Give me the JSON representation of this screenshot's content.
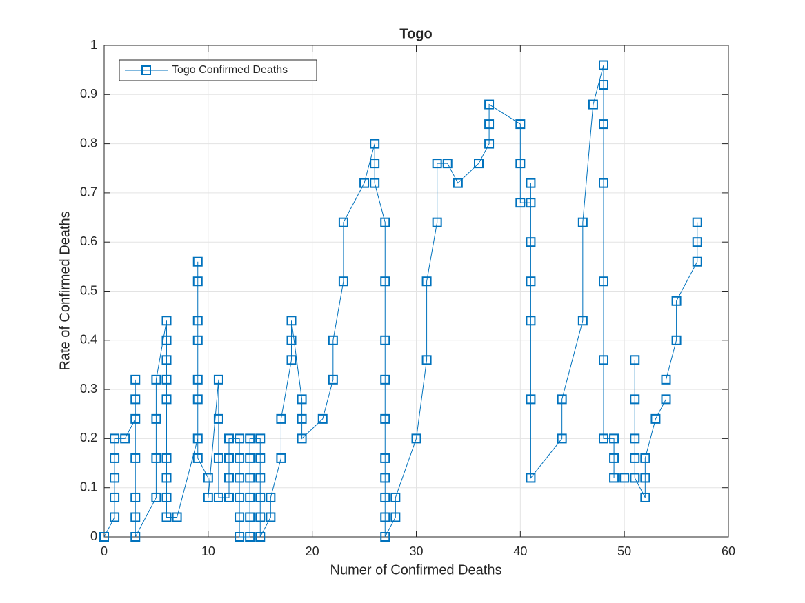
{
  "chart_data": {
    "type": "line",
    "title": "Togo",
    "x_label": "Numer of Confirmed Deaths",
    "y_label": "Rate of Confirmed Deaths",
    "series": [
      {
        "name": "Togo Confirmed Deaths",
        "color": "#0072bd",
        "x": [
          0,
          1,
          1,
          1,
          1,
          1,
          2,
          3,
          3,
          3,
          3,
          3,
          3,
          3,
          5,
          5,
          5,
          5,
          6,
          6,
          6,
          6,
          6,
          6,
          6,
          6,
          6,
          7,
          9,
          9,
          9,
          9,
          9,
          9,
          9,
          9,
          10,
          10,
          11,
          11,
          11,
          11,
          12,
          12,
          12,
          12,
          13,
          13,
          13,
          13,
          13,
          13,
          14,
          14,
          14,
          14,
          14,
          14,
          15,
          15,
          15,
          15,
          15,
          15,
          16,
          16,
          17,
          17,
          18,
          18,
          18,
          19,
          19,
          19,
          21,
          22,
          22,
          23,
          23,
          25,
          26,
          26,
          26,
          27,
          27,
          27,
          27,
          27,
          27,
          27,
          27,
          27,
          27,
          28,
          28,
          30,
          31,
          31,
          32,
          32,
          33,
          34,
          36,
          37,
          37,
          37,
          40,
          40,
          40,
          41,
          41,
          41,
          41,
          41,
          41,
          41,
          44,
          44,
          46,
          46,
          47,
          48,
          48,
          48,
          48,
          48,
          48,
          48,
          49,
          49,
          49,
          50,
          51,
          51,
          51,
          51,
          51,
          51,
          52,
          52,
          52,
          53,
          54,
          54,
          55,
          55,
          57,
          57,
          57
        ],
        "values": [
          0,
          0.04,
          0.08,
          0.12,
          0.16,
          0.2,
          0.2,
          0.24,
          0.28,
          0.32,
          0.16,
          0.08,
          0.04,
          0,
          0.08,
          0.16,
          0.24,
          0.32,
          0.44,
          0.4,
          0.36,
          0.32,
          0.28,
          0.16,
          0.12,
          0.08,
          0.04,
          0.04,
          0.2,
          0.28,
          0.32,
          0.4,
          0.44,
          0.52,
          0.56,
          0.16,
          0.12,
          0.08,
          0.32,
          0.24,
          0.16,
          0.08,
          0.08,
          0.12,
          0.16,
          0.2,
          0.2,
          0.16,
          0.12,
          0.08,
          0.04,
          0,
          0,
          0.04,
          0.08,
          0.12,
          0.16,
          0.2,
          0.2,
          0.16,
          0.12,
          0.08,
          0.04,
          0,
          0.04,
          0.08,
          0.16,
          0.24,
          0.36,
          0.4,
          0.44,
          0.28,
          0.24,
          0.2,
          0.24,
          0.32,
          0.4,
          0.52,
          0.64,
          0.72,
          0.8,
          0.76,
          0.72,
          0.64,
          0.52,
          0.4,
          0.32,
          0.24,
          0.16,
          0.12,
          0.08,
          0.04,
          0,
          0.04,
          0.08,
          0.2,
          0.36,
          0.52,
          0.64,
          0.76,
          0.76,
          0.72,
          0.76,
          0.8,
          0.84,
          0.88,
          0.84,
          0.76,
          0.68,
          0.68,
          0.72,
          0.6,
          0.52,
          0.44,
          0.28,
          0.12,
          0.2,
          0.28,
          0.44,
          0.64,
          0.88,
          0.96,
          0.92,
          0.84,
          0.72,
          0.52,
          0.36,
          0.2,
          0.2,
          0.16,
          0.12,
          0.12,
          0.12,
          0.36,
          0.28,
          0.2,
          0.16,
          0.12,
          0.08,
          0.12,
          0.16,
          0.24,
          0.28,
          0.32,
          0.4,
          0.48,
          0.56,
          0.6,
          0.64
        ]
      }
    ],
    "xlim": [
      0,
      60
    ],
    "xticks": [
      0,
      10,
      20,
      30,
      40,
      50,
      60
    ],
    "ylim": [
      0,
      1
    ],
    "yticks": [
      0,
      0.1,
      0.2,
      0.3,
      0.4,
      0.5,
      0.6,
      0.7,
      0.8,
      0.9,
      1
    ],
    "grid": true,
    "legend": "upper left"
  }
}
